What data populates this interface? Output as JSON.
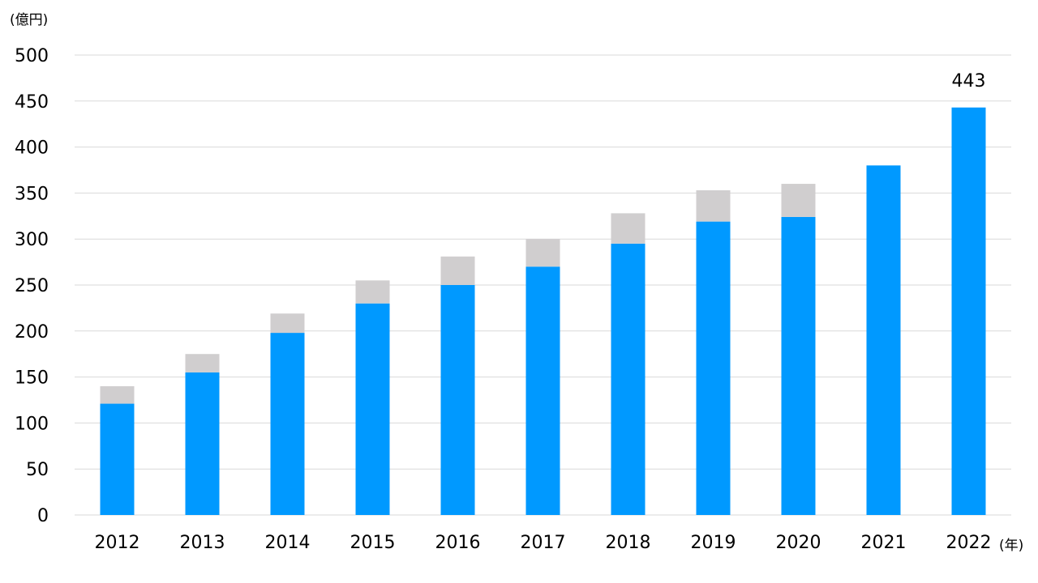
{
  "chart_data": {
    "type": "bar",
    "stacked": true,
    "categories": [
      "2012",
      "2013",
      "2014",
      "2015",
      "2016",
      "2017",
      "2018",
      "2019",
      "2020",
      "2021",
      "2022"
    ],
    "series": [
      {
        "values": [
          121,
          155,
          198,
          230,
          250,
          270,
          295,
          319,
          324,
          380,
          443
        ],
        "color": "#0099FF"
      },
      {
        "values": [
          19,
          20,
          21,
          25,
          31,
          30,
          33,
          34,
          36,
          0,
          0
        ],
        "color": "#D0CECF"
      }
    ],
    "ylim": [
      0,
      500
    ],
    "yticks": [
      0,
      50,
      100,
      150,
      200,
      250,
      300,
      350,
      400,
      450,
      500
    ],
    "grid": true,
    "y_unit": "(億円)",
    "x_unit": "(年)",
    "annotations": [
      {
        "category": "2022",
        "text": "443"
      }
    ]
  }
}
